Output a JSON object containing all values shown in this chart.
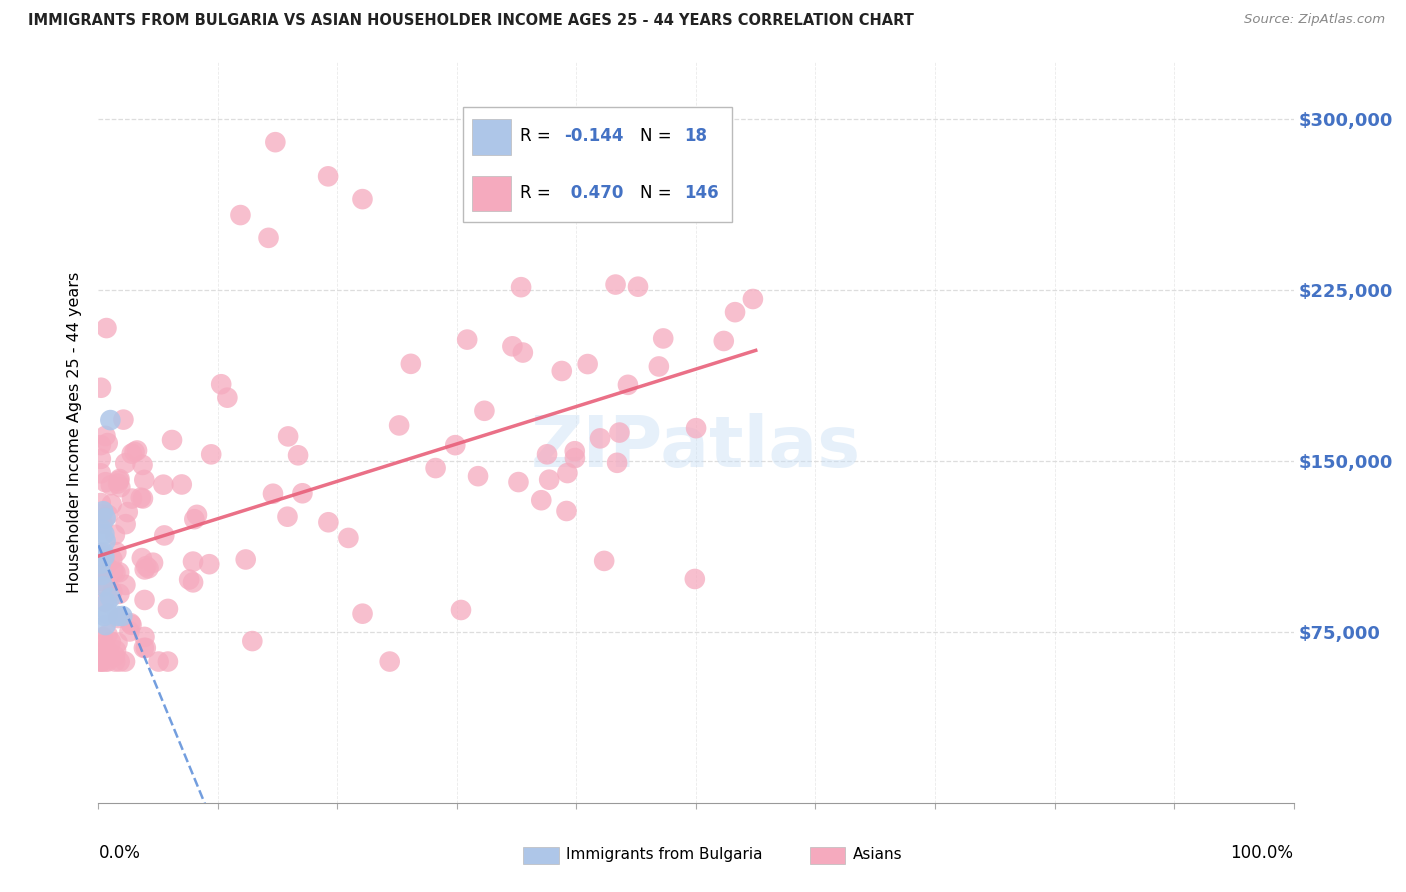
{
  "title": "IMMIGRANTS FROM BULGARIA VS ASIAN HOUSEHOLDER INCOME AGES 25 - 44 YEARS CORRELATION CHART",
  "source": "Source: ZipAtlas.com",
  "ylabel": "Householder Income Ages 25 - 44 years",
  "ytick_values": [
    75000,
    150000,
    225000,
    300000
  ],
  "ymin": 0,
  "ymax": 325000,
  "xmin": 0.0,
  "xmax": 1.0,
  "legend_r_bulgaria": "-0.144",
  "legend_n_bulgaria": "18",
  "legend_r_asian": "0.470",
  "legend_n_asian": "146",
  "bulgaria_color": "#aec6e8",
  "asian_color": "#f5aabe",
  "bulgaria_line_color": "#5b8dd9",
  "asian_line_color": "#e8607a",
  "watermark": "ZIPatlas",
  "bg_color": "#ffffff",
  "grid_color": "#dddddd",
  "title_color": "#222222",
  "source_color": "#888888",
  "rn_text_color": "#000000",
  "rn_value_color": "#4472c4",
  "yaxis_label_color": "#4472c4",
  "bottom_label_color": "#000000"
}
